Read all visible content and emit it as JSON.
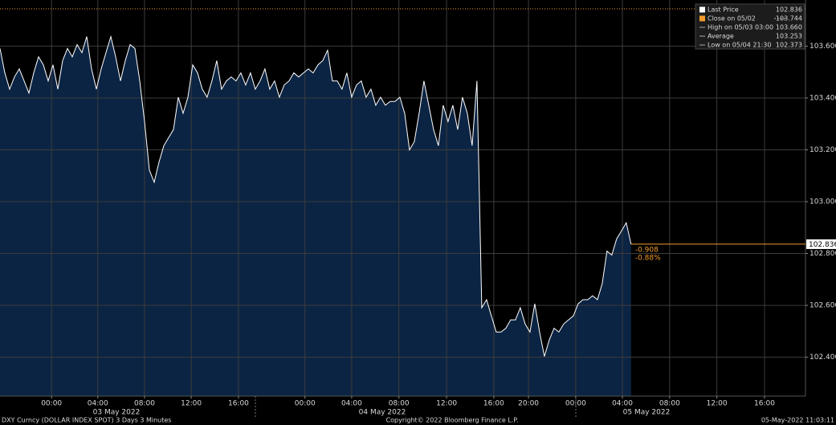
{
  "chart_data": {
    "type": "area",
    "series": [
      {
        "name": "Last Price",
        "color": "#ffffff",
        "fill": "#0c2443",
        "values": [
          103.591,
          103.497,
          103.434,
          103.481,
          103.512,
          103.466,
          103.419,
          103.497,
          103.559,
          103.528,
          103.466,
          103.528,
          103.434,
          103.544,
          103.591,
          103.559,
          103.606,
          103.575,
          103.637,
          103.512,
          103.434,
          103.512,
          103.575,
          103.637,
          103.559,
          103.466,
          103.544,
          103.606,
          103.591,
          103.466,
          103.309,
          103.122,
          103.075,
          103.153,
          103.216,
          103.247,
          103.278,
          103.403,
          103.341,
          103.403,
          103.528,
          103.497,
          103.434,
          103.403,
          103.466,
          103.544,
          103.434,
          103.466,
          103.481,
          103.466,
          103.497,
          103.45,
          103.497,
          103.434,
          103.466,
          103.512,
          103.434,
          103.466,
          103.403,
          103.45,
          103.466,
          103.497,
          103.481,
          103.497,
          103.512,
          103.497,
          103.528,
          103.544,
          103.584,
          103.466,
          103.466,
          103.434,
          103.497,
          103.403,
          103.45,
          103.466,
          103.403,
          103.434,
          103.372,
          103.403,
          103.372,
          103.387,
          103.387,
          103.403,
          103.341,
          103.2,
          103.231,
          103.341,
          103.466,
          103.372,
          103.278,
          103.216,
          103.372,
          103.309,
          103.372,
          103.278,
          103.403,
          103.341,
          103.216,
          103.466,
          102.591,
          102.622,
          102.559,
          102.497,
          102.497,
          102.512,
          102.544,
          102.544,
          102.591,
          102.528,
          102.497,
          102.606,
          102.497,
          102.403,
          102.466,
          102.512,
          102.497,
          102.528,
          102.544,
          102.559,
          102.606,
          102.622,
          102.622,
          102.637,
          102.622,
          102.684,
          102.809,
          102.794,
          102.856,
          102.887,
          102.919,
          102.836
        ]
      }
    ],
    "ylim": [
      102.25,
      103.778
    ],
    "yticks": [
      {
        "value": 102.4,
        "label": "102.400"
      },
      {
        "value": 102.6,
        "label": "102.600"
      },
      {
        "value": 102.8,
        "label": "102.800"
      },
      {
        "value": 103.0,
        "label": "103.000"
      },
      {
        "value": 103.2,
        "label": "103.200"
      },
      {
        "value": 103.4,
        "label": "103.400"
      },
      {
        "value": 103.6,
        "label": "103.600"
      }
    ],
    "xlim": [
      0,
      167.2
    ],
    "xticks": [
      {
        "value": 10.7,
        "label": "00:00"
      },
      {
        "value": 20.3,
        "label": "04:00"
      },
      {
        "value": 30,
        "label": "08:00"
      },
      {
        "value": 39.7,
        "label": "12:00"
      },
      {
        "value": 49.5,
        "label": "16:00"
      },
      {
        "value": 63.3,
        "label": "00:00"
      },
      {
        "value": 73,
        "label": "04:00"
      },
      {
        "value": 82.8,
        "label": "08:00"
      },
      {
        "value": 92.7,
        "label": "12:00"
      },
      {
        "value": 102.5,
        "label": "16:00"
      },
      {
        "value": 109.7,
        "label": "20:00"
      },
      {
        "value": 119.5,
        "label": "00:00"
      },
      {
        "value": 129.2,
        "label": "04:00"
      },
      {
        "value": 139,
        "label": "08:00"
      },
      {
        "value": 148.8,
        "label": "12:00"
      },
      {
        "value": 158.7,
        "label": "16:00"
      }
    ],
    "date_labels": [
      "03 May 2022",
      "04 May 2022",
      "05 May 2022"
    ],
    "grid": true,
    "legend": [
      {
        "name": "Last Price",
        "value": 102.836,
        "color": "#ffffff"
      },
      {
        "name": "Close on 05/02",
        "value": 103.744,
        "color": "#f39c2c"
      },
      {
        "name": "High on 05/03 03:00",
        "value": 103.66,
        "value_label": "103.660",
        "color": "#aaaaaa"
      },
      {
        "name": "Average",
        "value": 103.253,
        "color": "#aaaaaa"
      },
      {
        "name": "Low on 05/04 21:30",
        "value": 102.373,
        "color": "#aaaaaa"
      }
    ],
    "change": -0.908,
    "change_pct": -0.88,
    "change_pct_label": "-0.88%",
    "footer_left": "DXY Curncy (DOLLAR INDEX SPOT) 3 Days 3 Minutes",
    "footer_center": "Copyright© 2022 Bloomberg Finance L.P.",
    "footer_right": "05-May-2022 11:03:11"
  }
}
